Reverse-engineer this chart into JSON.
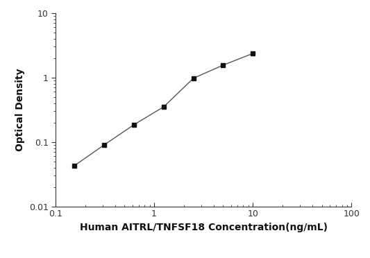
{
  "x_values": [
    0.156,
    0.312,
    0.625,
    1.25,
    2.5,
    5.0,
    10.0
  ],
  "y_values": [
    0.043,
    0.09,
    0.185,
    0.35,
    0.97,
    1.55,
    2.35
  ],
  "xlabel": "Human AITRL/TNFSF18 Concentration(ng/mL)",
  "ylabel": "Optical Density",
  "xlim": [
    0.1,
    100
  ],
  "ylim": [
    0.01,
    10
  ],
  "line_color": "#555555",
  "marker": "s",
  "marker_color": "#111111",
  "marker_size": 5,
  "linewidth": 1.0,
  "background_color": "#ffffff",
  "xlabel_fontsize": 10,
  "ylabel_fontsize": 10,
  "tick_fontsize": 9
}
